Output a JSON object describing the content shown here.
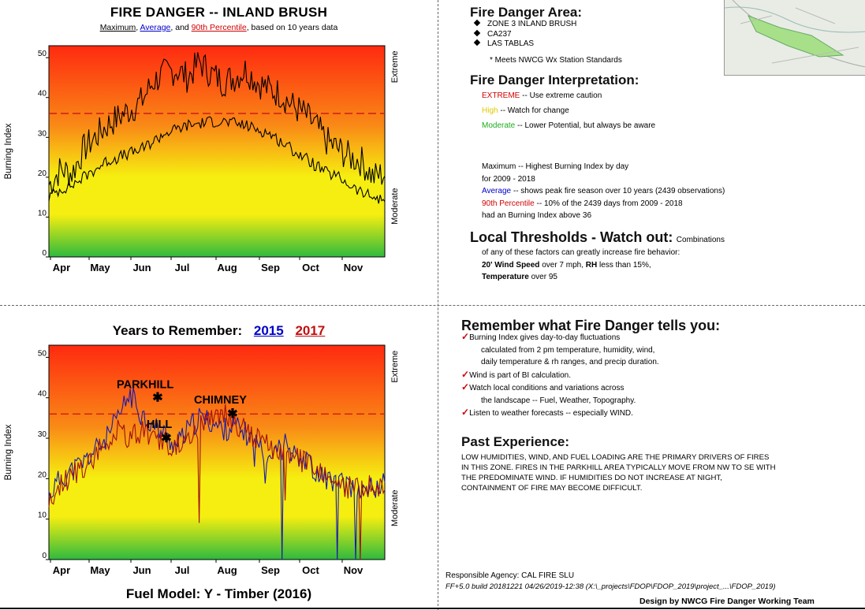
{
  "chart_data": [
    {
      "type": "line",
      "title": "FIRE DANGER -- INLAND BRUSH",
      "subtitle": {
        "parts": [
          "Maximum",
          ", ",
          "Average",
          ", and ",
          "90th Percentile",
          ", based on 10 years data"
        ]
      },
      "ylabel": "Burning Index",
      "ylim": [
        0,
        53
      ],
      "yticks": [
        0,
        10,
        20,
        30,
        40,
        50
      ],
      "months": [
        "Apr",
        "May",
        "Jun",
        "Jul",
        "Aug",
        "Sep",
        "Oct",
        "Nov"
      ],
      "threshold": 36,
      "right_labels": {
        "top": "Extreme",
        "bottom": "Moderate"
      },
      "series": [
        {
          "name": "Maximum",
          "color": "#000000",
          "values": [
            18,
            22,
            21,
            27,
            30,
            33,
            35,
            37,
            39,
            44,
            46,
            47,
            45,
            49,
            46,
            44,
            45,
            47,
            44,
            42,
            41,
            38,
            36,
            33,
            29,
            27,
            25,
            24,
            20,
            21
          ]
        },
        {
          "name": "Average",
          "color": "#000000",
          "values": [
            15,
            17,
            18,
            20,
            22,
            24,
            25,
            26,
            27,
            29,
            31,
            32,
            33,
            33.5,
            34,
            34,
            33.5,
            33,
            32,
            31,
            29,
            27,
            25,
            23,
            21,
            20,
            18,
            16,
            15,
            14
          ]
        }
      ]
    },
    {
      "type": "line",
      "title_parts": [
        "Years to Remember:",
        "2015",
        "2017"
      ],
      "ylabel": "Burning Index",
      "ylim": [
        0,
        53
      ],
      "yticks": [
        0,
        10,
        20,
        30,
        40,
        50
      ],
      "months": [
        "Apr",
        "May",
        "Jun",
        "Jul",
        "Aug",
        "Sep",
        "Oct",
        "Nov"
      ],
      "threshold": 36,
      "right_labels": {
        "top": "Extreme",
        "bottom": "Moderate"
      },
      "xlabel": "Fuel Model: Y - Timber (2016)",
      "series": [
        {
          "name": "2015",
          "color": "#1a1aaa",
          "values": [
            16,
            20,
            22,
            24,
            27,
            30,
            35,
            41,
            36,
            33,
            31,
            28,
            32,
            35,
            34,
            32,
            33,
            31,
            29,
            26,
            30,
            27,
            25,
            22,
            20,
            19,
            18,
            17,
            18,
            19
          ]
        },
        {
          "name": "2017",
          "color": "#a01010",
          "values": [
            14,
            18,
            21,
            23,
            26,
            29,
            32,
            30,
            32,
            30,
            29,
            28,
            31,
            33,
            35,
            36,
            34,
            32,
            30,
            28,
            27,
            26,
            24,
            22,
            20,
            18,
            18,
            17,
            19,
            18
          ]
        }
      ],
      "annotations": [
        {
          "label": "PARKHILL",
          "value": 40
        },
        {
          "label": "HILL",
          "value": 30
        },
        {
          "label": "CHIMNEY",
          "value": 36
        }
      ]
    }
  ],
  "area": {
    "heading": "Fire Danger Area:",
    "items": [
      "ZONE 3 INLAND BRUSH",
      "CA237",
      "LAS TABLAS"
    ],
    "note": "* Meets NWCG Wx Station Standards"
  },
  "interp": {
    "heading": "Fire Danger Interpretation:",
    "extreme_word": "EXTREME",
    "extreme_rest": "-- Use extreme caution",
    "high_word": "High",
    "high_rest": "-- Watch for change",
    "moderate_word": "Moderate",
    "moderate_rest": "-- Lower Potential, but always be aware"
  },
  "legend": {
    "max_line1": "Maximum  -- Highest Burning Index by day",
    "max_line2": "for 2009 - 2018",
    "avg_word": "Average",
    "avg_rest": "-- shows peak fire season over 10 years (2439 observations)",
    "p90_word": "90th Percentile",
    "p90_rest": "-- 10% of the 2439 days from 2009 - 2018",
    "p90_line2": "had an Burning Index above 36"
  },
  "thresholds": {
    "heading": "Local Thresholds - Watch out:",
    "heading_tail": "Combinations",
    "line1": "of any of these factors can greatly increase fire behavior:",
    "wind_bold": "20' Wind Speed",
    "wind_rest": "over 7 mph,",
    "rh_bold": "RH",
    "rh_rest": "less than 15%,",
    "temp_bold": "Temperature",
    "temp_rest": "over 95"
  },
  "remember": {
    "heading": "Remember what Fire Danger tells you:",
    "l1": "Burning Index gives day-to-day fluctuations",
    "l2": "calculated from 2 pm temperature, humidity, wind,",
    "l3": "daily temperature & rh ranges, and precip duration.",
    "l4": "Wind is part of BI calculation.",
    "l5": "Watch local conditions and variations across",
    "l6": "the landscape -- Fuel, Weather, Topography.",
    "l7": "Listen to weather forecasts -- especially WIND."
  },
  "past": {
    "heading": "Past Experience:",
    "l1": "LOW HUMIDITIES, WIND,  AND FUEL LOADING ARE THE PRIMARY DRIVERS OF FIRES",
    "l2": "IN THIS ZONE. FIRES IN THE PARKHILL AREA TYPICALLY MOVE FROM NW TO SE WITH",
    "l3": "THE PREDOMINATE WIND. IF HUMIDITIES DO NOT INCREASE AT NIGHT,",
    "l4": "CONTAINMENT OF FIRE MAY BECOME DIFFICULT."
  },
  "footer": {
    "agency": "Responsible Agency: CAL FIRE SLU",
    "build": "FF+5.0 build 20181221 04/26/2019-12:38 (X:\\_projects\\FDOP\\FDOP_2019\\project_...\\FDOP_2019)",
    "design": "Design by NWCG Fire Danger Working Team"
  },
  "colors": {
    "extreme": "#ff2a10",
    "high": "#f6ee10",
    "moderate": "#2eba3e"
  }
}
